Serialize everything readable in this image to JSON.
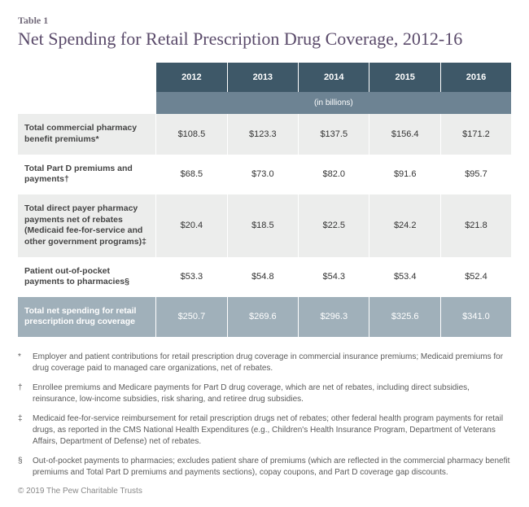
{
  "table_label": "Table 1",
  "title": "Net Spending for Retail Prescription Drug Coverage, 2012-16",
  "columns": [
    "",
    "2012",
    "2013",
    "2014",
    "2015",
    "2016"
  ],
  "units_label": "(in billions)",
  "rows": [
    {
      "label": "Total commercial pharmacy benefit premiums*",
      "cells": [
        "$108.5",
        "$123.3",
        "$137.5",
        "$156.4",
        "$171.2"
      ],
      "class": "r-odd"
    },
    {
      "label": "Total Part D premiums and payments†",
      "cells": [
        "$68.5",
        "$73.0",
        "$82.0",
        "$91.6",
        "$95.7"
      ],
      "class": "r-even"
    },
    {
      "label": "Total direct payer pharmacy payments net of rebates (Medicaid fee-for-service and other government programs)‡",
      "cells": [
        "$20.4",
        "$18.5",
        "$22.5",
        "$24.2",
        "$21.8"
      ],
      "class": "r-odd"
    },
    {
      "label": "Patient out-of-pocket payments to pharmacies§",
      "cells": [
        "$53.3",
        "$54.8",
        "$54.3",
        "$53.4",
        "$52.4"
      ],
      "class": "r-even"
    },
    {
      "label": "Total net spending for retail prescription drug coverage",
      "cells": [
        "$250.7",
        "$269.6",
        "$296.3",
        "$325.6",
        "$341.0"
      ],
      "class": "r-total"
    }
  ],
  "footnotes": [
    {
      "sym": "*",
      "text": "Employer and patient contributions for retail prescription drug coverage in commercial insurance premiums; Medicaid premiums for drug coverage paid to managed care organizations, net of rebates."
    },
    {
      "sym": "†",
      "text": "Enrollee premiums and Medicare payments for Part D drug coverage, which are net of rebates, including direct subsidies, reinsurance, low-income subsidies, risk sharing, and retiree drug subsidies."
    },
    {
      "sym": "‡",
      "text": "Medicaid fee-for-service reimbursement for retail prescription drugs net of rebates; other federal health program payments for retail drugs, as reported in the CMS National Health Expenditures (e.g., Children's Health Insurance Program, Department of Veterans Affairs, Department of Defense) net of rebates."
    },
    {
      "sym": "§",
      "text": "Out-of-pocket payments to pharmacies; excludes patient share of premiums (which are reflected in the commercial pharmacy benefit premiums and Total Part D premiums and payments sections), copay coupons, and Part D coverage gap discounts."
    }
  ],
  "copyright": "© 2019 The Pew Charitable Trusts",
  "colors": {
    "header_bg": "#3e5868",
    "subheader_bg": "#6d8393",
    "row_odd_bg": "#ecedec",
    "row_even_bg": "#ffffff",
    "total_bg": "#a0b0ba",
    "title_color": "#5a4a6a"
  }
}
